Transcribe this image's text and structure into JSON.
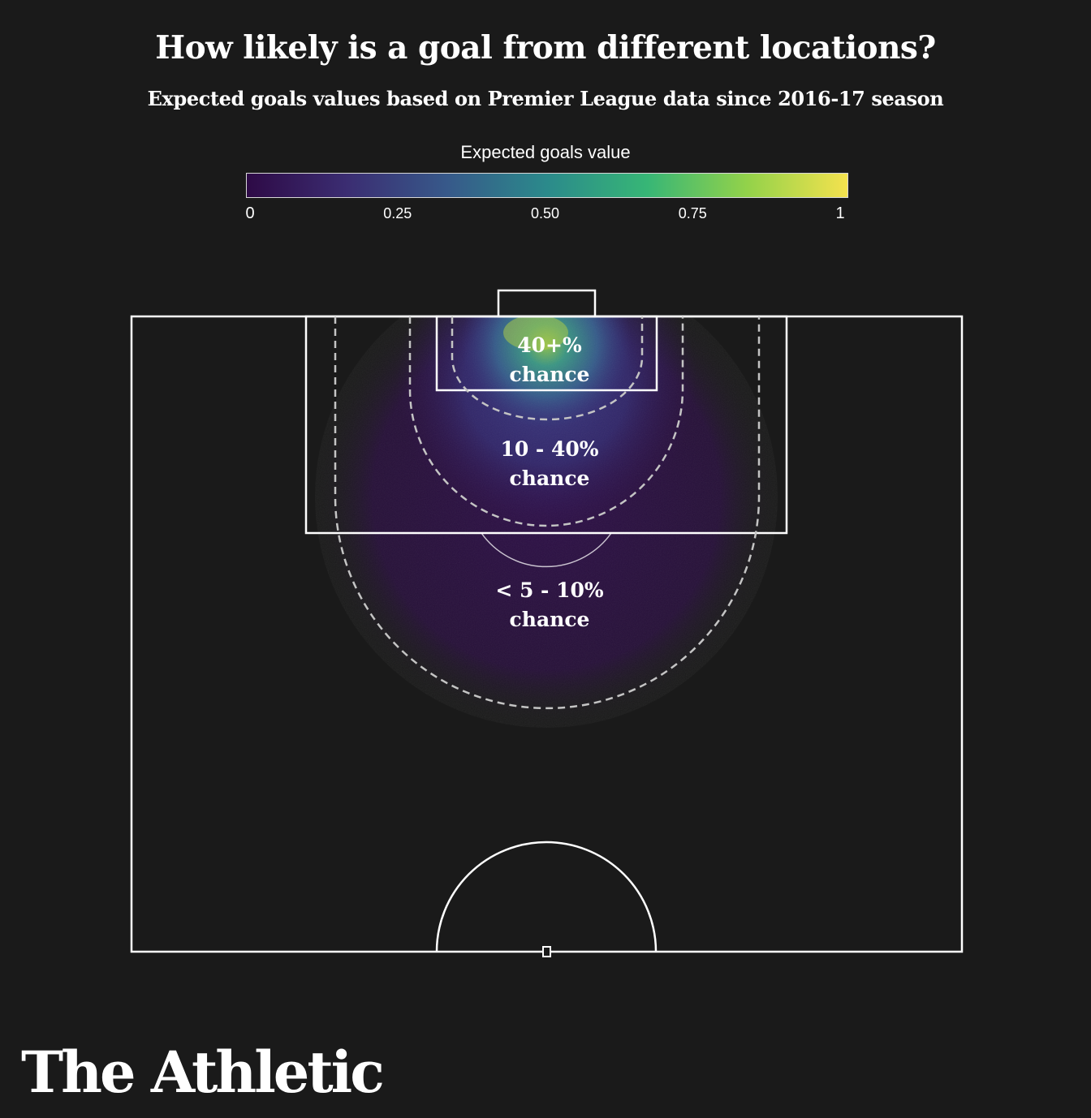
{
  "title": "How likely is a goal from different locations?",
  "subtitle": "Expected goals values based on Premier League data since 2016-17 season",
  "colors": {
    "background": "#1a1a1a",
    "pitch_lines": "#ffffff",
    "zone_outline": "#bbbbbb",
    "scale": [
      "#2e0a46",
      "#3b2d72",
      "#37598a",
      "#2b8a8b",
      "#37b676",
      "#93d24a",
      "#f4e24e"
    ]
  },
  "chart_data": {
    "type": "heatmap",
    "title": "How likely is a goal from different locations?",
    "subtitle": "Expected goals values based on Premier League data since 2016-17 season",
    "legend": {
      "title": "Expected goals value",
      "min": 0,
      "max": 1,
      "ticks": [
        {
          "value": 0,
          "label": "0"
        },
        {
          "value": 0.25,
          "label": "0.25"
        },
        {
          "value": 0.5,
          "label": "0.50"
        },
        {
          "value": 0.75,
          "label": "0.75"
        },
        {
          "value": 1,
          "label": "1"
        }
      ]
    },
    "zones": [
      {
        "label_line1": "40+%",
        "label_line2": "chance",
        "xg_min": 0.4,
        "xg_max": 1
      },
      {
        "label_line1": "10 - 40%",
        "label_line2": "chance",
        "xg_min": 0.1,
        "xg_max": 0.4
      },
      {
        "label_line1": "< 5 - 10%",
        "label_line2": "chance",
        "xg_min": 0.05,
        "xg_max": 0.1
      }
    ]
  },
  "brand": "The Athletic"
}
